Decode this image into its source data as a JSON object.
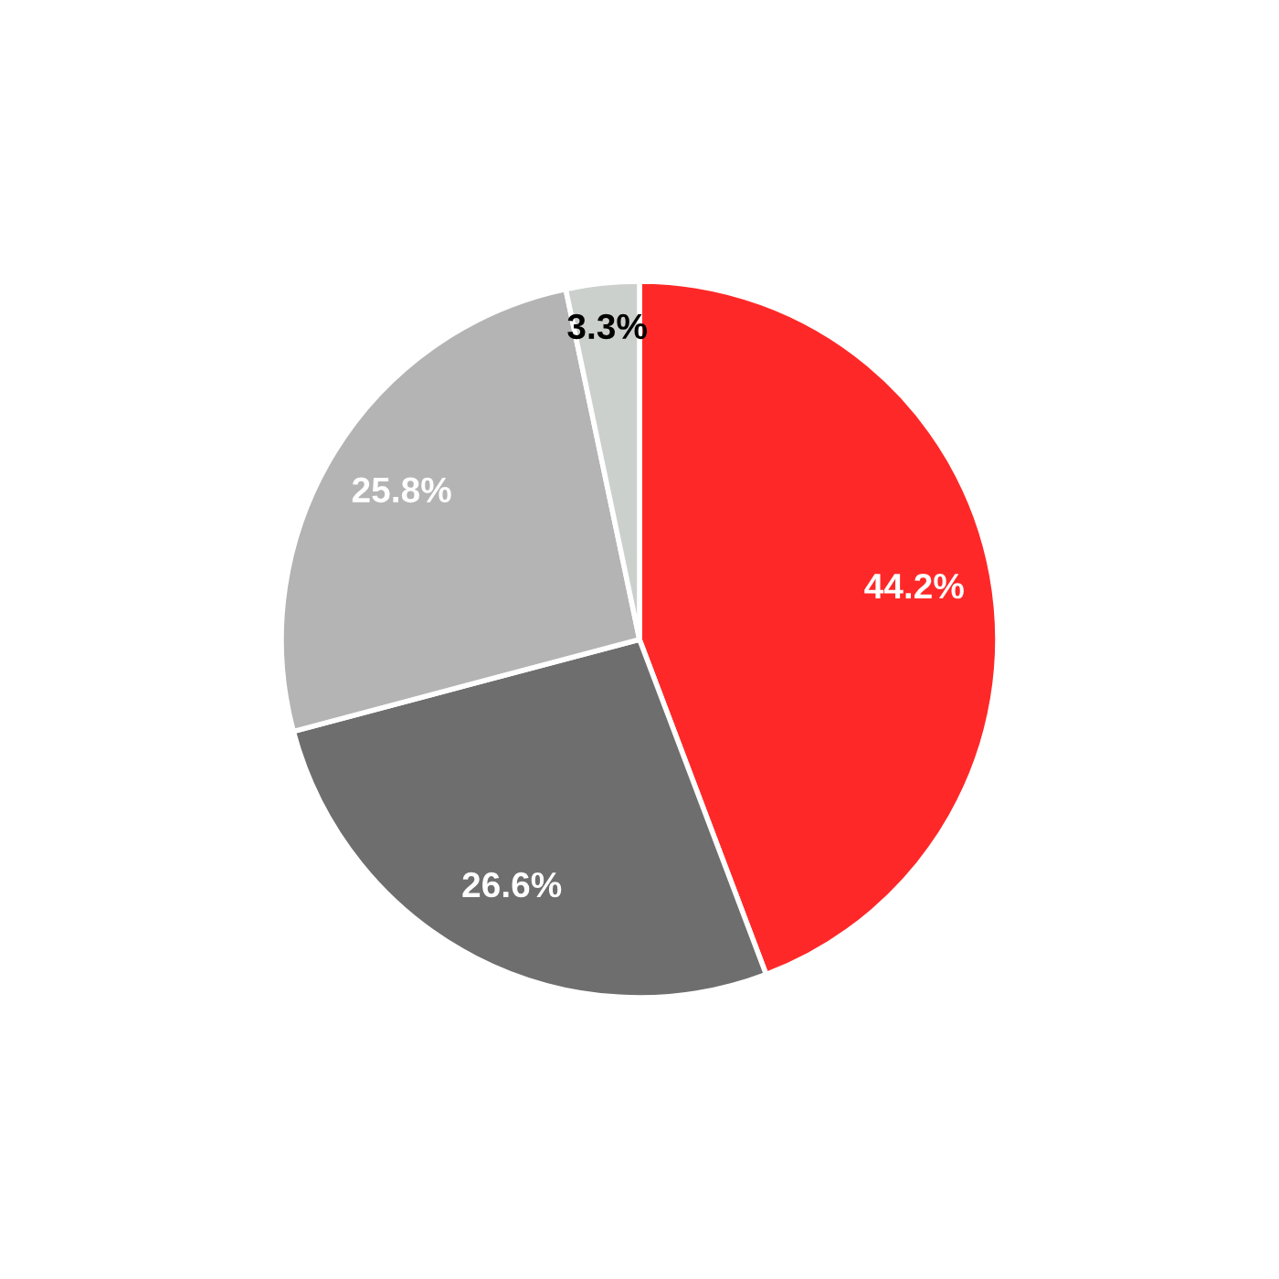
{
  "chart_data": {
    "type": "pie",
    "categories": [
      null,
      null,
      null,
      null
    ],
    "values": [
      44.2,
      26.6,
      25.8,
      3.3
    ],
    "colors": [
      "#ff2828",
      "#6e6e6e",
      "#b4b4b4",
      "#cbd0cd"
    ],
    "value_labels": [
      "44.2%",
      "26.6%",
      "25.8%",
      "3.3%"
    ]
  }
}
